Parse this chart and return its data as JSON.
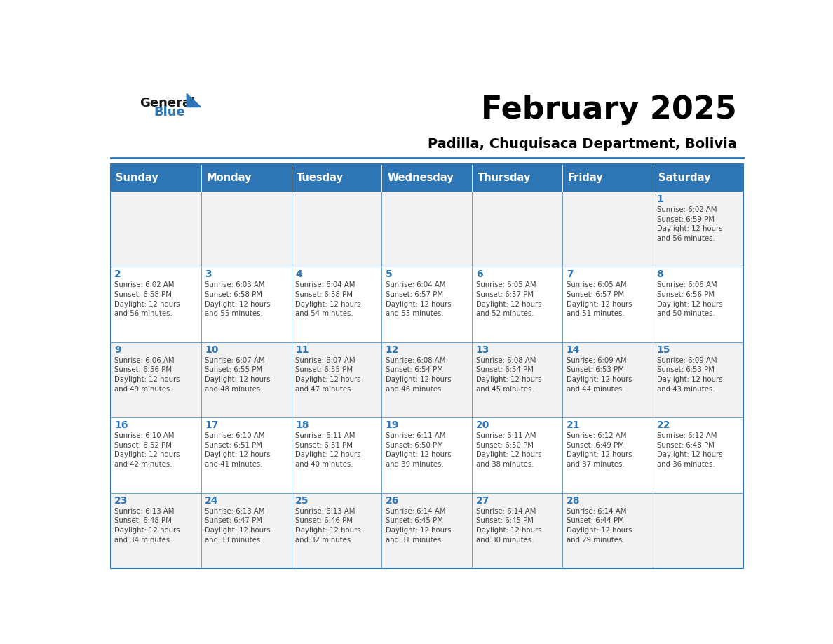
{
  "title": "February 2025",
  "subtitle": "Padilla, Chuquisaca Department, Bolivia",
  "days_of_week": [
    "Sunday",
    "Monday",
    "Tuesday",
    "Wednesday",
    "Thursday",
    "Friday",
    "Saturday"
  ],
  "header_bg": "#2E75B6",
  "header_text": "#FFFFFF",
  "cell_bg_light": "#F2F2F2",
  "cell_bg_white": "#FFFFFF",
  "cell_border": "#2E75B6",
  "day_number_color": "#2E75B6",
  "cell_text_color": "#404040",
  "title_color": "#000000",
  "subtitle_color": "#000000",
  "logo_general_color": "#1A1A1A",
  "logo_blue_color": "#2E75B6",
  "weeks": [
    [
      {
        "day": null,
        "info": null
      },
      {
        "day": null,
        "info": null
      },
      {
        "day": null,
        "info": null
      },
      {
        "day": null,
        "info": null
      },
      {
        "day": null,
        "info": null
      },
      {
        "day": null,
        "info": null
      },
      {
        "day": 1,
        "info": "Sunrise: 6:02 AM\nSunset: 6:59 PM\nDaylight: 12 hours\nand 56 minutes."
      }
    ],
    [
      {
        "day": 2,
        "info": "Sunrise: 6:02 AM\nSunset: 6:58 PM\nDaylight: 12 hours\nand 56 minutes."
      },
      {
        "day": 3,
        "info": "Sunrise: 6:03 AM\nSunset: 6:58 PM\nDaylight: 12 hours\nand 55 minutes."
      },
      {
        "day": 4,
        "info": "Sunrise: 6:04 AM\nSunset: 6:58 PM\nDaylight: 12 hours\nand 54 minutes."
      },
      {
        "day": 5,
        "info": "Sunrise: 6:04 AM\nSunset: 6:57 PM\nDaylight: 12 hours\nand 53 minutes."
      },
      {
        "day": 6,
        "info": "Sunrise: 6:05 AM\nSunset: 6:57 PM\nDaylight: 12 hours\nand 52 minutes."
      },
      {
        "day": 7,
        "info": "Sunrise: 6:05 AM\nSunset: 6:57 PM\nDaylight: 12 hours\nand 51 minutes."
      },
      {
        "day": 8,
        "info": "Sunrise: 6:06 AM\nSunset: 6:56 PM\nDaylight: 12 hours\nand 50 minutes."
      }
    ],
    [
      {
        "day": 9,
        "info": "Sunrise: 6:06 AM\nSunset: 6:56 PM\nDaylight: 12 hours\nand 49 minutes."
      },
      {
        "day": 10,
        "info": "Sunrise: 6:07 AM\nSunset: 6:55 PM\nDaylight: 12 hours\nand 48 minutes."
      },
      {
        "day": 11,
        "info": "Sunrise: 6:07 AM\nSunset: 6:55 PM\nDaylight: 12 hours\nand 47 minutes."
      },
      {
        "day": 12,
        "info": "Sunrise: 6:08 AM\nSunset: 6:54 PM\nDaylight: 12 hours\nand 46 minutes."
      },
      {
        "day": 13,
        "info": "Sunrise: 6:08 AM\nSunset: 6:54 PM\nDaylight: 12 hours\nand 45 minutes."
      },
      {
        "day": 14,
        "info": "Sunrise: 6:09 AM\nSunset: 6:53 PM\nDaylight: 12 hours\nand 44 minutes."
      },
      {
        "day": 15,
        "info": "Sunrise: 6:09 AM\nSunset: 6:53 PM\nDaylight: 12 hours\nand 43 minutes."
      }
    ],
    [
      {
        "day": 16,
        "info": "Sunrise: 6:10 AM\nSunset: 6:52 PM\nDaylight: 12 hours\nand 42 minutes."
      },
      {
        "day": 17,
        "info": "Sunrise: 6:10 AM\nSunset: 6:51 PM\nDaylight: 12 hours\nand 41 minutes."
      },
      {
        "day": 18,
        "info": "Sunrise: 6:11 AM\nSunset: 6:51 PM\nDaylight: 12 hours\nand 40 minutes."
      },
      {
        "day": 19,
        "info": "Sunrise: 6:11 AM\nSunset: 6:50 PM\nDaylight: 12 hours\nand 39 minutes."
      },
      {
        "day": 20,
        "info": "Sunrise: 6:11 AM\nSunset: 6:50 PM\nDaylight: 12 hours\nand 38 minutes."
      },
      {
        "day": 21,
        "info": "Sunrise: 6:12 AM\nSunset: 6:49 PM\nDaylight: 12 hours\nand 37 minutes."
      },
      {
        "day": 22,
        "info": "Sunrise: 6:12 AM\nSunset: 6:48 PM\nDaylight: 12 hours\nand 36 minutes."
      }
    ],
    [
      {
        "day": 23,
        "info": "Sunrise: 6:13 AM\nSunset: 6:48 PM\nDaylight: 12 hours\nand 34 minutes."
      },
      {
        "day": 24,
        "info": "Sunrise: 6:13 AM\nSunset: 6:47 PM\nDaylight: 12 hours\nand 33 minutes."
      },
      {
        "day": 25,
        "info": "Sunrise: 6:13 AM\nSunset: 6:46 PM\nDaylight: 12 hours\nand 32 minutes."
      },
      {
        "day": 26,
        "info": "Sunrise: 6:14 AM\nSunset: 6:45 PM\nDaylight: 12 hours\nand 31 minutes."
      },
      {
        "day": 27,
        "info": "Sunrise: 6:14 AM\nSunset: 6:45 PM\nDaylight: 12 hours\nand 30 minutes."
      },
      {
        "day": 28,
        "info": "Sunrise: 6:14 AM\nSunset: 6:44 PM\nDaylight: 12 hours\nand 29 minutes."
      },
      {
        "day": null,
        "info": null
      }
    ]
  ]
}
